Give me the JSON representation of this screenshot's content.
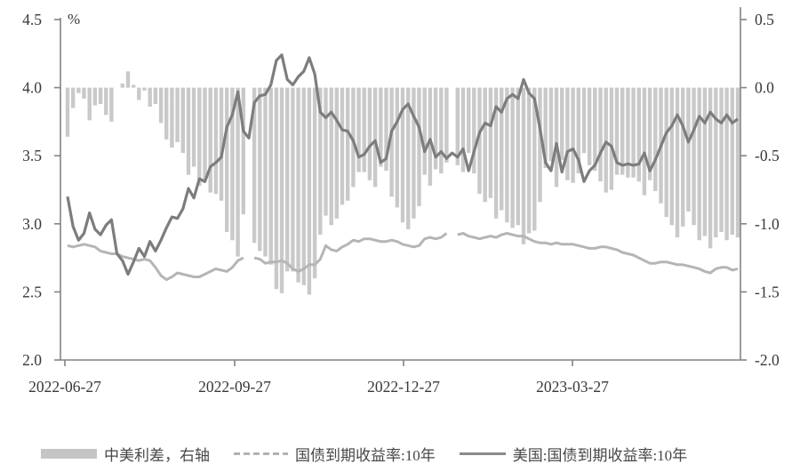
{
  "chart_data": {
    "type": "combo",
    "title": "",
    "unit_label": "%",
    "x_ticks": [
      "2022-06-27",
      "2022-09-27",
      "2022-12-27",
      "2023-03-27"
    ],
    "y_axis_left": {
      "ticks": [
        "4.5",
        "4.0",
        "3.5",
        "3.0",
        "2.5",
        "2.0"
      ],
      "range": [
        2.0,
        4.5
      ]
    },
    "y_axis_right": {
      "ticks": [
        "0.5",
        "0.0",
        "-0.5",
        "-1.0",
        "-1.5",
        "-2.0"
      ],
      "range": [
        -2.0,
        0.5
      ]
    },
    "legend": [
      "中美利差，右轴",
      "国债到期收益率:10年",
      "美国:国债到期收益率:10年"
    ],
    "colors": {
      "bars": "#c9c9c9",
      "cn_line": "#b5b5b5",
      "us_line": "#7d7d7d",
      "axis": "#848484",
      "text": "#383838"
    },
    "series": [
      {
        "name": "中美利差，右轴",
        "type": "bar",
        "axis": "right",
        "derived": "china_minus_us",
        "color": "#c9c9c9"
      },
      {
        "name": "国债到期收益率:10年",
        "type": "line",
        "axis": "left",
        "color": "#b5b5b5",
        "values": [
          2.84,
          2.83,
          2.84,
          2.85,
          2.84,
          2.83,
          2.8,
          2.79,
          2.78,
          2.78,
          2.76,
          2.75,
          2.74,
          2.73,
          2.74,
          2.73,
          2.68,
          2.62,
          2.59,
          2.61,
          2.64,
          2.63,
          2.62,
          2.61,
          2.61,
          2.63,
          2.65,
          2.67,
          2.66,
          2.65,
          2.68,
          2.73,
          2.75,
          null,
          2.75,
          2.74,
          2.71,
          2.72,
          2.72,
          2.73,
          2.71,
          2.67,
          2.65,
          2.67,
          2.7,
          2.7,
          2.74,
          2.84,
          2.81,
          2.8,
          2.83,
          2.85,
          2.88,
          2.87,
          2.89,
          2.89,
          2.88,
          2.87,
          2.87,
          2.88,
          2.87,
          2.85,
          2.84,
          2.83,
          2.84,
          2.89,
          2.9,
          2.89,
          2.9,
          2.93,
          null,
          2.92,
          2.93,
          2.91,
          2.9,
          2.89,
          2.9,
          2.91,
          2.9,
          2.92,
          2.93,
          2.92,
          2.91,
          2.91,
          2.89,
          2.87,
          2.86,
          2.86,
          2.85,
          2.86,
          2.85,
          2.85,
          2.85,
          2.84,
          2.83,
          2.82,
          2.82,
          2.83,
          2.83,
          2.82,
          2.81,
          2.79,
          2.78,
          2.77,
          2.75,
          2.73,
          2.71,
          2.71,
          2.72,
          2.72,
          2.71,
          2.7,
          2.7,
          2.69,
          2.68,
          2.67,
          2.65,
          2.64,
          2.67,
          2.68,
          2.68,
          2.66,
          2.67
        ]
      },
      {
        "name": "美国:国债到期收益率:10年",
        "type": "line",
        "axis": "left",
        "color": "#7d7d7d",
        "values": [
          3.2,
          2.98,
          2.88,
          2.93,
          3.08,
          2.96,
          2.92,
          2.99,
          3.03,
          2.78,
          2.73,
          2.63,
          2.72,
          2.82,
          2.76,
          2.87,
          2.8,
          2.88,
          2.97,
          3.05,
          3.04,
          3.11,
          3.26,
          3.19,
          3.33,
          3.31,
          3.42,
          3.45,
          3.49,
          3.71,
          3.8,
          3.97,
          3.68,
          3.63,
          3.89,
          3.94,
          3.95,
          4.02,
          4.2,
          4.24,
          4.06,
          4.02,
          4.08,
          4.12,
          4.22,
          4.1,
          3.82,
          3.78,
          3.82,
          3.76,
          3.69,
          3.68,
          3.61,
          3.49,
          3.51,
          3.57,
          3.61,
          3.45,
          3.48,
          3.68,
          3.75,
          3.84,
          3.88,
          3.79,
          3.71,
          3.53,
          3.62,
          3.49,
          3.53,
          3.48,
          3.52,
          3.49,
          3.55,
          3.39,
          3.53,
          3.67,
          3.74,
          3.72,
          3.86,
          3.82,
          3.92,
          3.95,
          3.92,
          4.06,
          3.96,
          3.92,
          3.7,
          3.45,
          3.39,
          3.59,
          3.38,
          3.53,
          3.55,
          3.47,
          3.31,
          3.39,
          3.43,
          3.52,
          3.6,
          3.57,
          3.45,
          3.43,
          3.44,
          3.43,
          3.44,
          3.52,
          3.39,
          3.47,
          3.57,
          3.67,
          3.72,
          3.8,
          3.72,
          3.6,
          3.69,
          3.79,
          3.74,
          3.82,
          3.77,
          3.74,
          3.8,
          3.74,
          3.77
        ]
      }
    ]
  }
}
